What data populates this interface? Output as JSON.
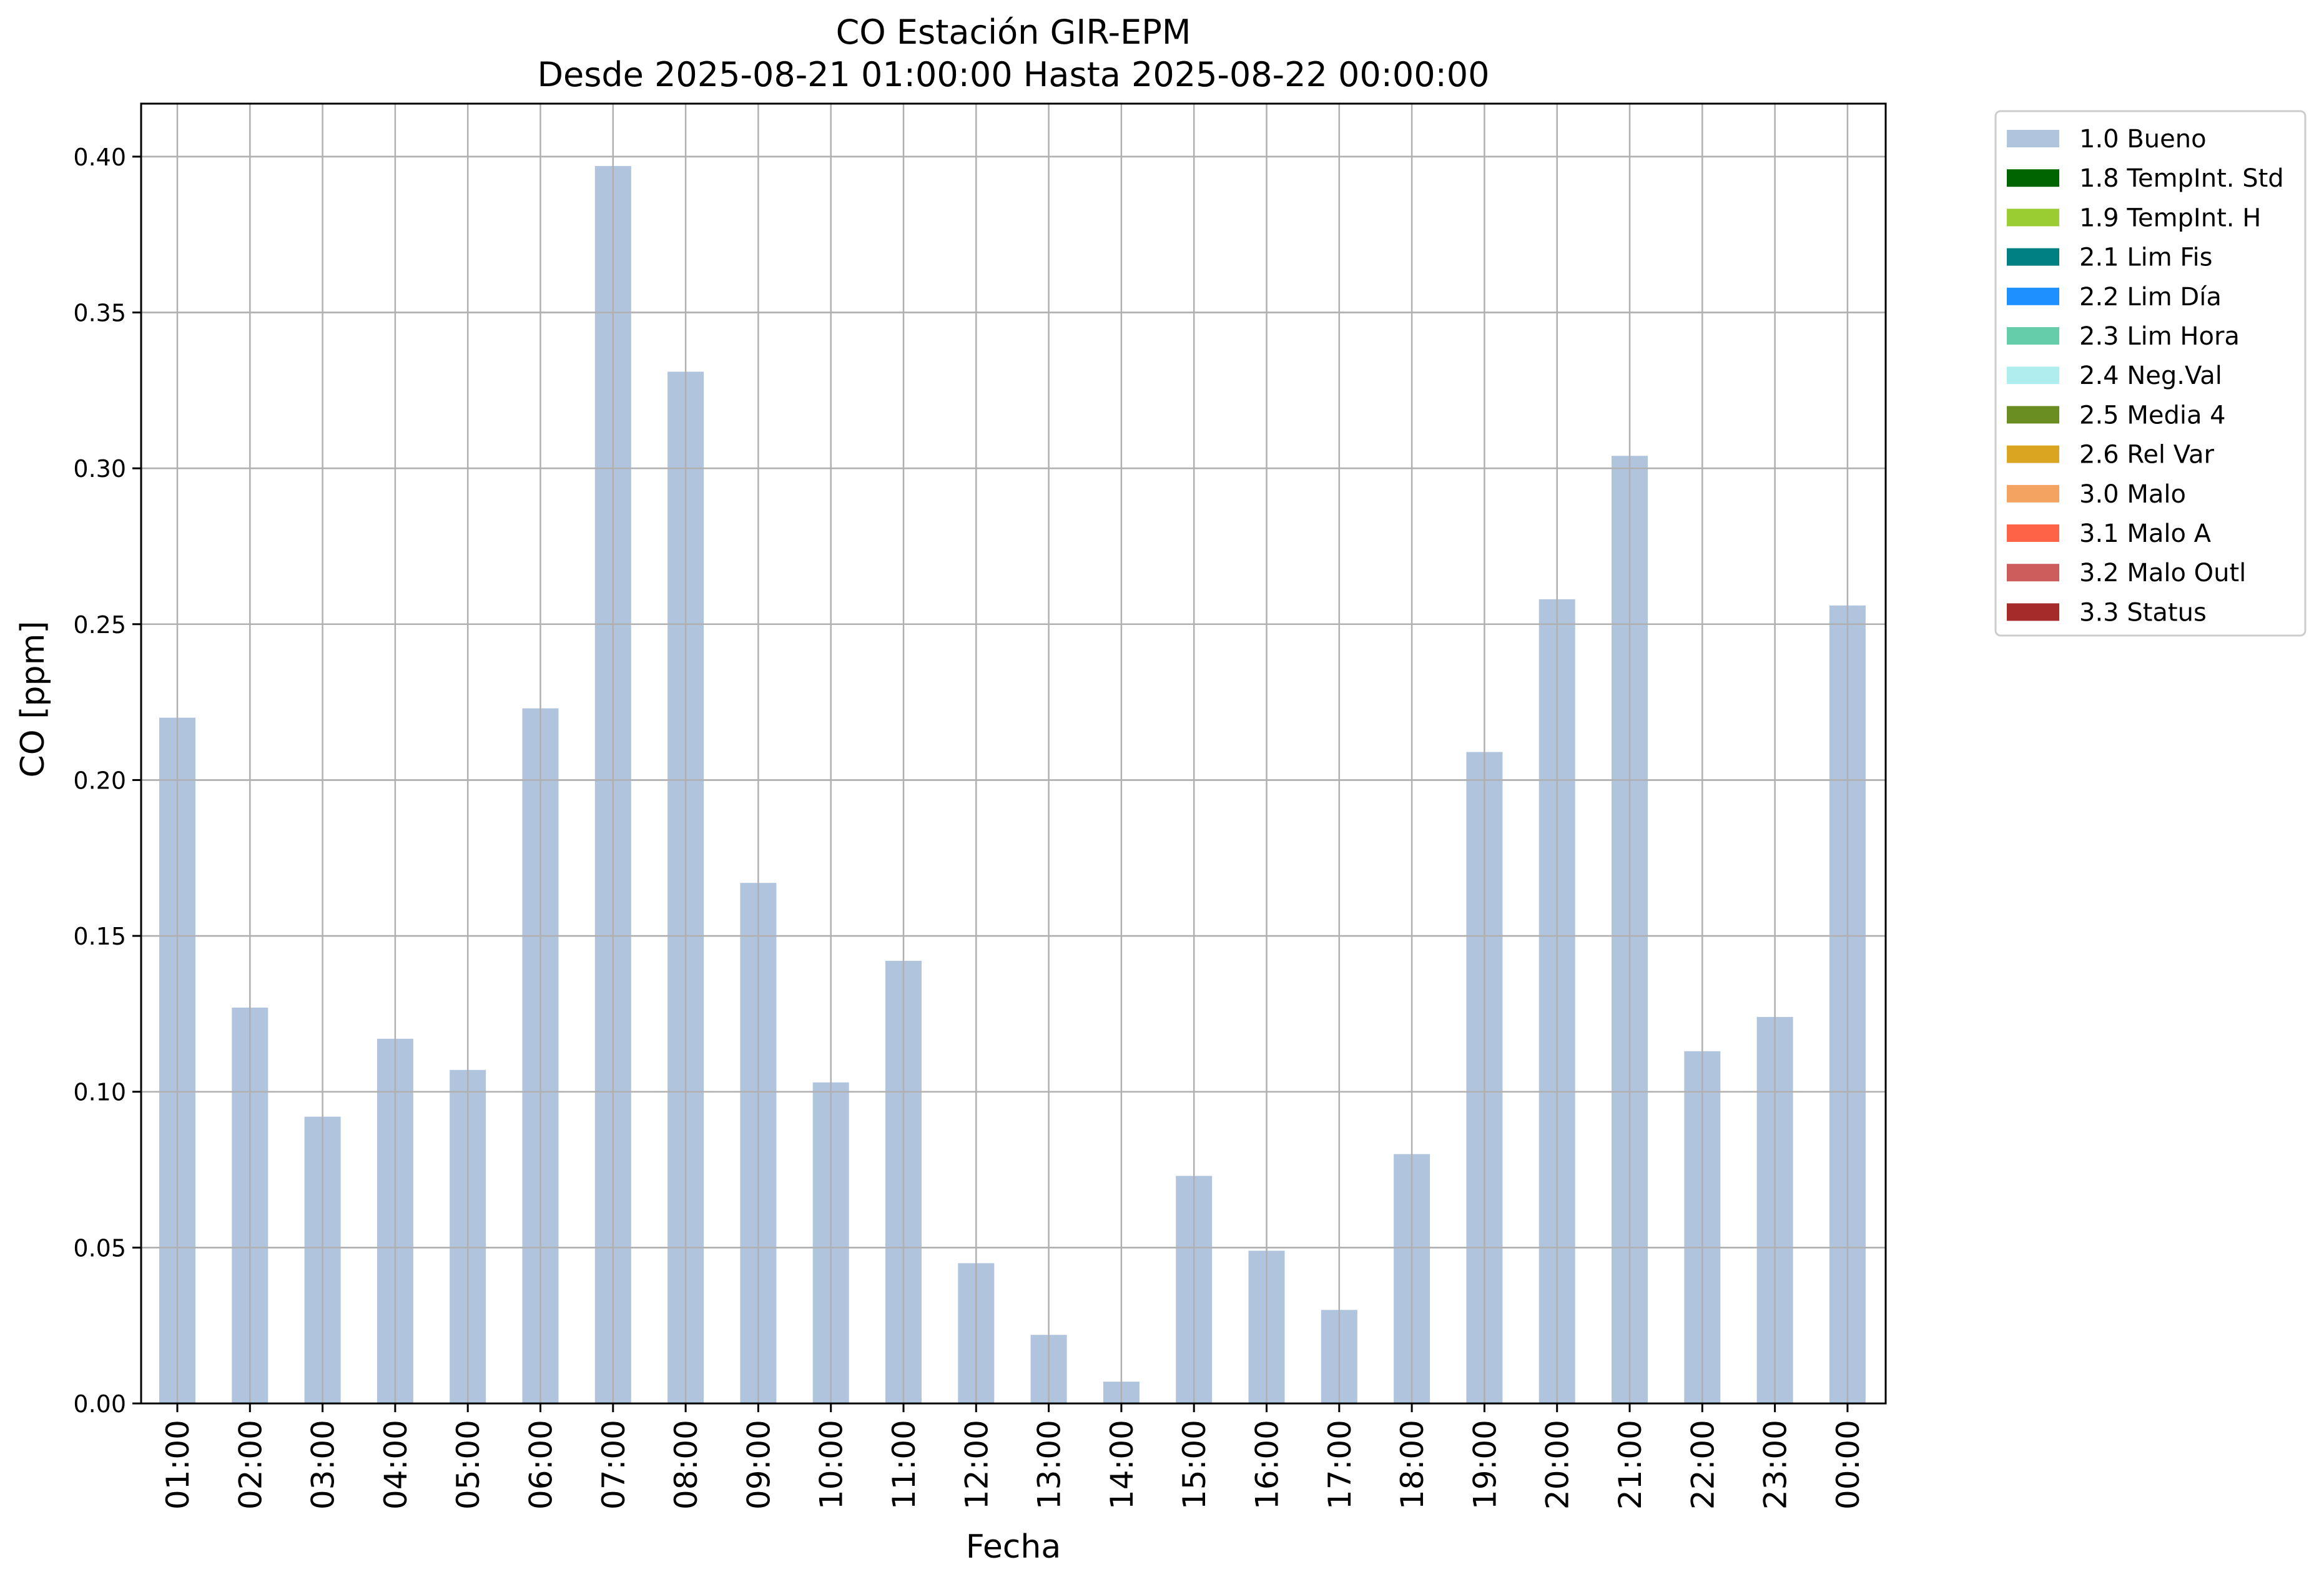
{
  "chart_data": {
    "type": "bar",
    "title": "CO Estación GIR-EPM",
    "subtitle": "Desde 2025-08-21 01:00:00 Hasta 2025-08-22 00:00:00",
    "xlabel": "Fecha",
    "ylabel": "CO [ppm]",
    "ylim": [
      0,
      0.417
    ],
    "yticks": [
      "0.00",
      "0.05",
      "0.10",
      "0.15",
      "0.20",
      "0.25",
      "0.30",
      "0.35",
      "0.40"
    ],
    "ytick_values": [
      0,
      0.05,
      0.1,
      0.15,
      0.2,
      0.25,
      0.3,
      0.35,
      0.4
    ],
    "grid": true,
    "legend_position": "outside-top-right",
    "categories": [
      "01:00",
      "02:00",
      "03:00",
      "04:00",
      "05:00",
      "06:00",
      "07:00",
      "08:00",
      "09:00",
      "10:00",
      "11:00",
      "12:00",
      "13:00",
      "14:00",
      "15:00",
      "16:00",
      "17:00",
      "18:00",
      "19:00",
      "20:00",
      "21:00",
      "22:00",
      "23:00",
      "00:00"
    ],
    "series": [
      {
        "name": "1.0 Bueno",
        "color": "#b0c4de",
        "values": [
          0.22,
          0.127,
          0.092,
          0.117,
          0.107,
          0.223,
          0.397,
          0.331,
          0.167,
          0.103,
          0.142,
          0.045,
          0.022,
          0.007,
          0.073,
          0.049,
          0.03,
          0.08,
          0.209,
          0.258,
          0.304,
          0.113,
          0.124,
          0.256
        ]
      }
    ],
    "legend": [
      {
        "label": "1.0 Bueno",
        "color": "#b0c4de"
      },
      {
        "label": "1.8 TempInt. Std",
        "color": "#006400"
      },
      {
        "label": "1.9 TempInt. H",
        "color": "#9acd32"
      },
      {
        "label": "2.1 Lim Fis",
        "color": "#008080"
      },
      {
        "label": "2.2 Lim Día",
        "color": "#1e90ff"
      },
      {
        "label": "2.3 Lim Hora",
        "color": "#66cdaa"
      },
      {
        "label": "2.4 Neg.Val",
        "color": "#afeeee"
      },
      {
        "label": "2.5 Media 4",
        "color": "#6b8e23"
      },
      {
        "label": "2.6 Rel Var",
        "color": "#daa520"
      },
      {
        "label": "3.0 Malo",
        "color": "#f4a460"
      },
      {
        "label": "3.1 Malo A",
        "color": "#ff6347"
      },
      {
        "label": "3.2 Malo Outl",
        "color": "#cd5c5c"
      },
      {
        "label": "3.3 Status",
        "color": "#a52a2a"
      }
    ]
  }
}
